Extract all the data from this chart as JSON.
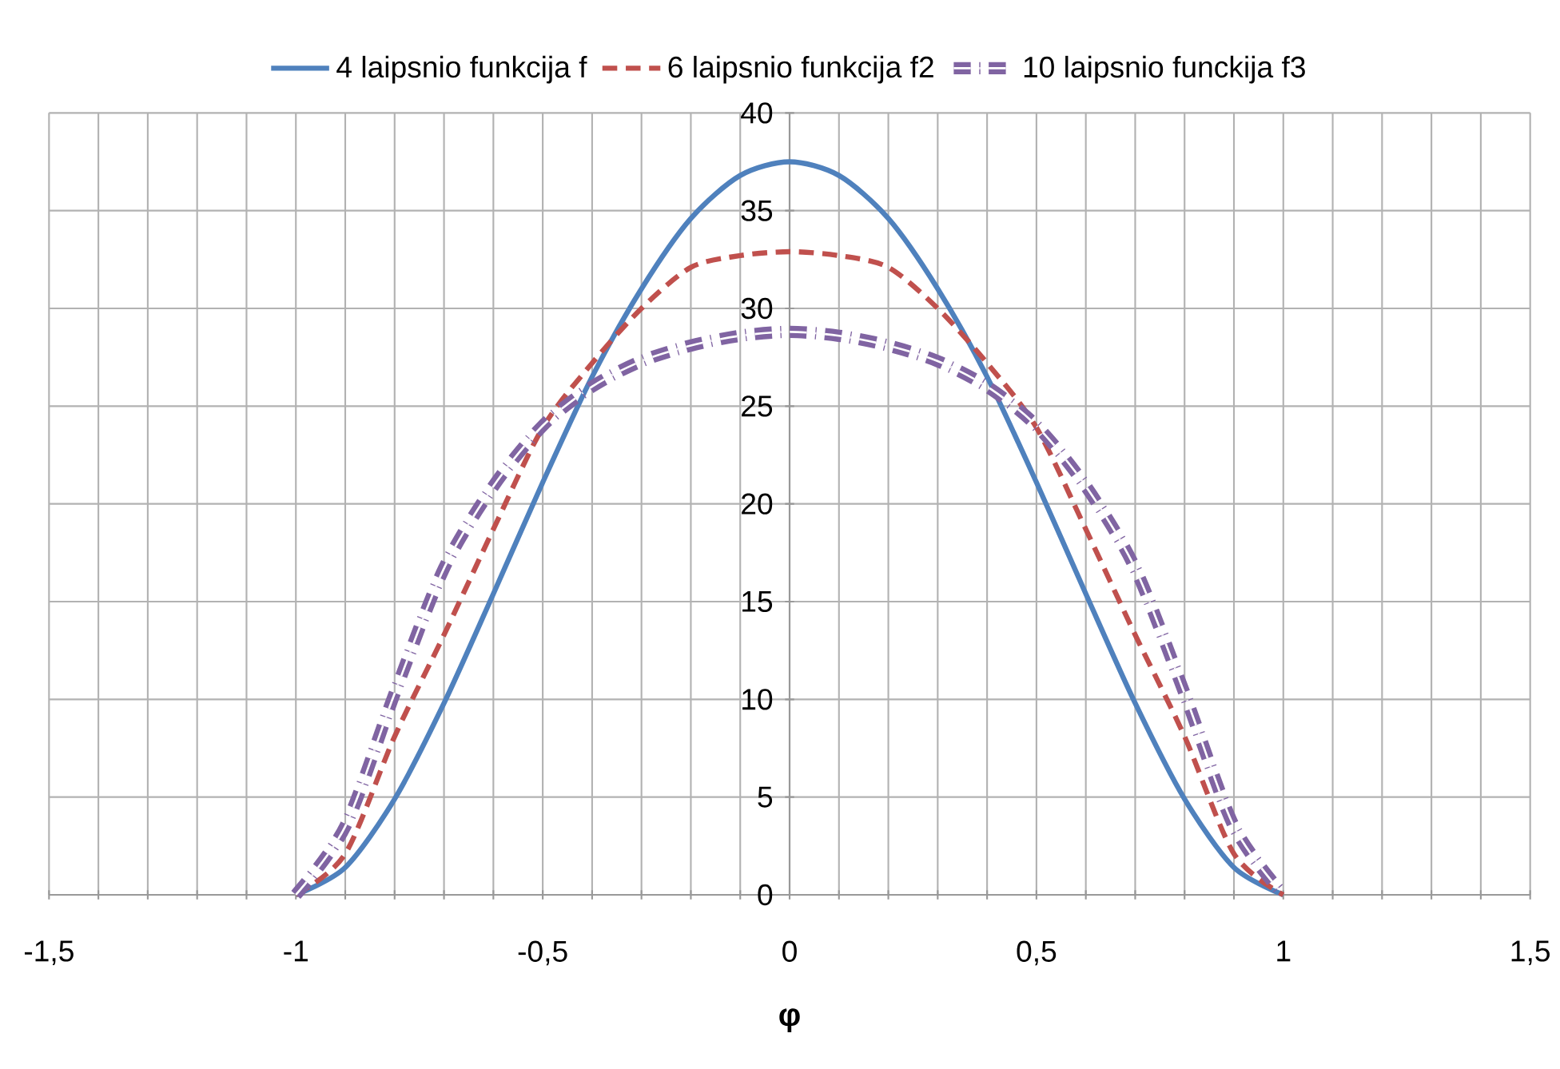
{
  "chart_data": {
    "type": "line",
    "xlabel": "φ",
    "legend": "top",
    "grid": true,
    "xlim": [
      -1.5,
      1.5
    ],
    "ylim": [
      0,
      40
    ],
    "xticks": [
      {
        "value": -1.5,
        "label": "-1,5"
      },
      {
        "value": -1.4,
        "label": null
      },
      {
        "value": -1.3,
        "label": null
      },
      {
        "value": -1.2,
        "label": null
      },
      {
        "value": -1.1,
        "label": null
      },
      {
        "value": -1,
        "label": "-1"
      },
      {
        "value": -0.9,
        "label": null
      },
      {
        "value": -0.8,
        "label": null
      },
      {
        "value": -0.7,
        "label": null
      },
      {
        "value": -0.6,
        "label": null
      },
      {
        "value": -0.5,
        "label": "-0,5"
      },
      {
        "value": -0.4,
        "label": null
      },
      {
        "value": -0.3,
        "label": null
      },
      {
        "value": -0.2,
        "label": null
      },
      {
        "value": -0.1,
        "label": null
      },
      {
        "value": 0,
        "label": "0"
      },
      {
        "value": 0.1,
        "label": null
      },
      {
        "value": 0.2,
        "label": null
      },
      {
        "value": 0.3,
        "label": null
      },
      {
        "value": 0.4,
        "label": null
      },
      {
        "value": 0.5,
        "label": "0,5"
      },
      {
        "value": 0.6,
        "label": null
      },
      {
        "value": 0.7,
        "label": null
      },
      {
        "value": 0.8,
        "label": null
      },
      {
        "value": 0.9,
        "label": null
      },
      {
        "value": 1,
        "label": "1"
      },
      {
        "value": 1.1,
        "label": null
      },
      {
        "value": 1.2,
        "label": null
      },
      {
        "value": 1.3,
        "label": null
      },
      {
        "value": 1.4,
        "label": null
      },
      {
        "value": 1.5,
        "label": "1,5"
      }
    ],
    "yticks": [
      0,
      5,
      10,
      15,
      20,
      25,
      30,
      35,
      40
    ],
    "x": [
      -1,
      -0.9,
      -0.8,
      -0.7,
      -0.6,
      -0.5,
      -0.4,
      -0.3,
      -0.2,
      -0.1,
      0,
      0.1,
      0.2,
      0.3,
      0.4,
      0.5,
      0.6,
      0.7,
      0.8,
      0.9,
      1
    ],
    "series": [
      {
        "name": "4 laipsnio funkcija f",
        "color": "#4f81bd",
        "line_style": "solid",
        "values": [
          0,
          1.4,
          4.9,
          9.8,
          15.4,
          21.1,
          26.5,
          31.0,
          34.6,
          36.8,
          37.5,
          36.8,
          34.6,
          31.0,
          26.5,
          21.1,
          15.4,
          9.8,
          4.9,
          1.4,
          0
        ]
      },
      {
        "name": "6 laipsnio funkcija f2",
        "color": "#c0504d",
        "line_style": "dashed",
        "values": [
          0,
          2.1,
          8.1,
          13.3,
          18.7,
          23.9,
          27.2,
          30.0,
          32.1,
          32.7,
          32.9,
          32.7,
          32.1,
          30.0,
          27.2,
          23.9,
          18.7,
          13.3,
          8.1,
          2.1,
          0
        ]
      },
      {
        "name": "10 laipsnio funckija f3",
        "color": "#8064a2",
        "line_style": "dashdot",
        "values": [
          0,
          3.5,
          10.3,
          16.7,
          20.9,
          24.0,
          26.0,
          27.3,
          28.1,
          28.6,
          28.8,
          28.6,
          28.1,
          27.3,
          26.0,
          24.0,
          20.9,
          16.7,
          10.3,
          3.5,
          0
        ]
      }
    ]
  }
}
